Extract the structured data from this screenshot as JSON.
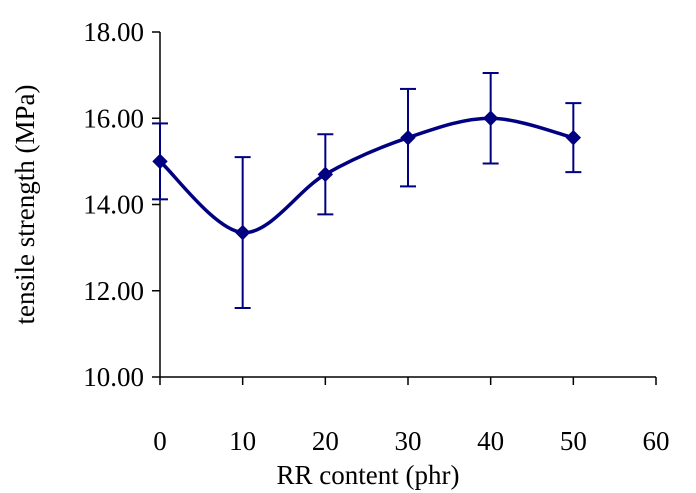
{
  "chart_data": {
    "type": "line",
    "title": "",
    "xlabel": "RR content (phr)",
    "ylabel": "tensile strength (MPa)",
    "xlim": [
      0,
      60
    ],
    "ylim": [
      10.0,
      18.0
    ],
    "x_ticks": [
      "0",
      "10",
      "20",
      "30",
      "40",
      "50",
      "60"
    ],
    "y_ticks": [
      "10.00",
      "12.00",
      "14.00",
      "16.00",
      "18.00"
    ],
    "grid": false,
    "legend": "none",
    "line_style": "smoothed",
    "marker": "diamond",
    "color": "#000080",
    "series": [
      {
        "x": [
          0,
          10,
          20,
          30,
          40,
          50
        ],
        "y": [
          15.0,
          13.35,
          14.7,
          15.55,
          16.0,
          15.55
        ],
        "error": [
          0.88,
          1.75,
          0.93,
          1.13,
          1.05,
          0.8
        ]
      }
    ]
  }
}
